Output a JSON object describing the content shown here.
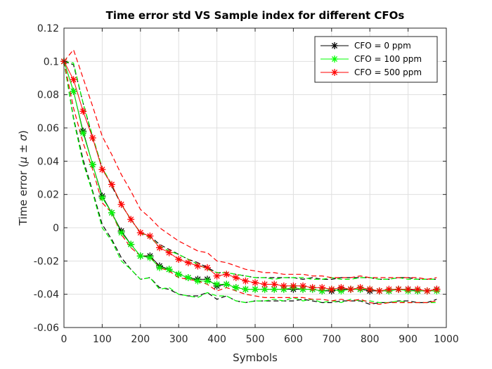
{
  "chart_data": {
    "type": "line",
    "title": "Time error std VS Sample index for different CFOs",
    "xlabel": "Symbols",
    "ylabel_text": "Time error (",
    "ylabel_mu": "μ",
    "ylabel_pm": " ± ",
    "ylabel_sigma": "σ",
    "ylabel_close": ")",
    "xlim": [
      0,
      1000
    ],
    "ylim": [
      -0.06,
      0.12
    ],
    "xticks": [
      0,
      100,
      200,
      300,
      400,
      500,
      600,
      700,
      800,
      900,
      1000
    ],
    "yticks": [
      -0.06,
      -0.04,
      -0.02,
      0,
      0.02,
      0.04,
      0.06,
      0.08,
      0.1,
      0.12
    ],
    "xtick_labels": [
      "0",
      "100",
      "200",
      "300",
      "400",
      "500",
      "600",
      "700",
      "800",
      "900",
      "1000"
    ],
    "ytick_labels": [
      "-0.06",
      "-0.04",
      "-0.02",
      "0",
      "0.02",
      "0.04",
      "0.06",
      "0.08",
      "0.1",
      "0.12"
    ],
    "grid": true,
    "legend_position": "top-right",
    "x": [
      0,
      25,
      50,
      75,
      100,
      125,
      150,
      175,
      200,
      225,
      250,
      275,
      300,
      325,
      350,
      375,
      400,
      425,
      450,
      475,
      500,
      525,
      550,
      575,
      600,
      625,
      650,
      675,
      700,
      725,
      750,
      775,
      800,
      825,
      850,
      875,
      900,
      925,
      950,
      975
    ],
    "series": [
      {
        "name": "CFO = 0 ppm",
        "color": "#000000",
        "marker_color": "#000000",
        "mean": [
          0.1,
          0.082,
          0.058,
          0.038,
          0.019,
          0.009,
          -0.002,
          -0.01,
          -0.017,
          -0.017,
          -0.023,
          -0.025,
          -0.028,
          -0.03,
          -0.031,
          -0.031,
          -0.035,
          -0.034,
          -0.036,
          -0.037,
          -0.037,
          -0.037,
          -0.037,
          -0.037,
          -0.037,
          -0.037,
          -0.037,
          -0.038,
          -0.038,
          -0.037,
          -0.037,
          -0.037,
          -0.038,
          -0.038,
          -0.038,
          -0.037,
          -0.037,
          -0.038,
          -0.038,
          -0.037
        ],
        "upper": [
          0.1,
          0.098,
          0.075,
          0.054,
          0.036,
          0.025,
          0.014,
          0.005,
          -0.003,
          -0.005,
          -0.01,
          -0.013,
          -0.016,
          -0.019,
          -0.021,
          -0.024,
          -0.027,
          -0.027,
          -0.028,
          -0.029,
          -0.03,
          -0.03,
          -0.03,
          -0.03,
          -0.03,
          -0.031,
          -0.03,
          -0.031,
          -0.031,
          -0.03,
          -0.03,
          -0.03,
          -0.03,
          -0.031,
          -0.031,
          -0.03,
          -0.03,
          -0.031,
          -0.031,
          -0.031
        ],
        "lower": [
          0.1,
          0.066,
          0.041,
          0.022,
          0.002,
          -0.007,
          -0.018,
          -0.025,
          -0.031,
          -0.03,
          -0.036,
          -0.037,
          -0.04,
          -0.041,
          -0.041,
          -0.039,
          -0.043,
          -0.041,
          -0.044,
          -0.045,
          -0.044,
          -0.044,
          -0.044,
          -0.044,
          -0.044,
          -0.043,
          -0.044,
          -0.045,
          -0.045,
          -0.044,
          -0.044,
          -0.044,
          -0.046,
          -0.045,
          -0.045,
          -0.044,
          -0.044,
          -0.045,
          -0.045,
          -0.043
        ]
      },
      {
        "name": "CFO = 100 ppm",
        "color": "#00ff00",
        "marker_color": "#00ff00",
        "mean": [
          0.1,
          0.082,
          0.057,
          0.038,
          0.018,
          0.009,
          -0.003,
          -0.01,
          -0.017,
          -0.018,
          -0.024,
          -0.025,
          -0.028,
          -0.03,
          -0.032,
          -0.032,
          -0.034,
          -0.034,
          -0.036,
          -0.037,
          -0.037,
          -0.037,
          -0.037,
          -0.037,
          -0.036,
          -0.037,
          -0.037,
          -0.038,
          -0.037,
          -0.038,
          -0.037,
          -0.037,
          -0.037,
          -0.038,
          -0.038,
          -0.037,
          -0.038,
          -0.038,
          -0.038,
          -0.038
        ],
        "upper": [
          0.1,
          0.099,
          0.075,
          0.055,
          0.036,
          0.026,
          0.014,
          0.005,
          -0.003,
          -0.006,
          -0.011,
          -0.014,
          -0.016,
          -0.019,
          -0.022,
          -0.025,
          -0.027,
          -0.027,
          -0.028,
          -0.029,
          -0.03,
          -0.03,
          -0.031,
          -0.03,
          -0.03,
          -0.03,
          -0.031,
          -0.031,
          -0.03,
          -0.031,
          -0.031,
          -0.03,
          -0.03,
          -0.031,
          -0.031,
          -0.03,
          -0.031,
          -0.031,
          -0.031,
          -0.031
        ],
        "lower": [
          0.1,
          0.065,
          0.039,
          0.021,
          0.0,
          -0.008,
          -0.02,
          -0.025,
          -0.031,
          -0.03,
          -0.037,
          -0.036,
          -0.04,
          -0.041,
          -0.042,
          -0.039,
          -0.041,
          -0.041,
          -0.044,
          -0.045,
          -0.044,
          -0.044,
          -0.043,
          -0.044,
          -0.042,
          -0.044,
          -0.043,
          -0.045,
          -0.044,
          -0.045,
          -0.043,
          -0.044,
          -0.044,
          -0.045,
          -0.045,
          -0.044,
          -0.045,
          -0.045,
          -0.045,
          -0.045
        ]
      },
      {
        "name": "CFO = 500 ppm",
        "color": "#ff0000",
        "marker_color": "#ff0000",
        "mean": [
          0.1,
          0.089,
          0.07,
          0.054,
          0.035,
          0.026,
          0.014,
          0.005,
          -0.003,
          -0.005,
          -0.012,
          -0.015,
          -0.019,
          -0.021,
          -0.023,
          -0.024,
          -0.029,
          -0.028,
          -0.03,
          -0.032,
          -0.033,
          -0.034,
          -0.034,
          -0.035,
          -0.035,
          -0.035,
          -0.036,
          -0.036,
          -0.037,
          -0.036,
          -0.037,
          -0.036,
          -0.037,
          -0.038,
          -0.037,
          -0.037,
          -0.037,
          -0.037,
          -0.038,
          -0.037
        ],
        "upper": [
          0.1,
          0.107,
          0.09,
          0.073,
          0.055,
          0.044,
          0.032,
          0.022,
          0.011,
          0.006,
          0.0,
          -0.004,
          -0.008,
          -0.011,
          -0.014,
          -0.015,
          -0.02,
          -0.021,
          -0.023,
          -0.025,
          -0.026,
          -0.027,
          -0.027,
          -0.028,
          -0.028,
          -0.028,
          -0.029,
          -0.029,
          -0.03,
          -0.03,
          -0.03,
          -0.029,
          -0.03,
          -0.03,
          -0.03,
          -0.03,
          -0.03,
          -0.03,
          -0.031,
          -0.03
        ],
        "lower": [
          0.1,
          0.072,
          0.051,
          0.035,
          0.015,
          0.009,
          -0.004,
          -0.012,
          -0.017,
          -0.017,
          -0.024,
          -0.026,
          -0.03,
          -0.031,
          -0.032,
          -0.034,
          -0.038,
          -0.036,
          -0.038,
          -0.04,
          -0.041,
          -0.042,
          -0.042,
          -0.042,
          -0.042,
          -0.042,
          -0.043,
          -0.043,
          -0.044,
          -0.043,
          -0.044,
          -0.043,
          -0.045,
          -0.046,
          -0.045,
          -0.045,
          -0.045,
          -0.045,
          -0.045,
          -0.044
        ]
      }
    ]
  }
}
